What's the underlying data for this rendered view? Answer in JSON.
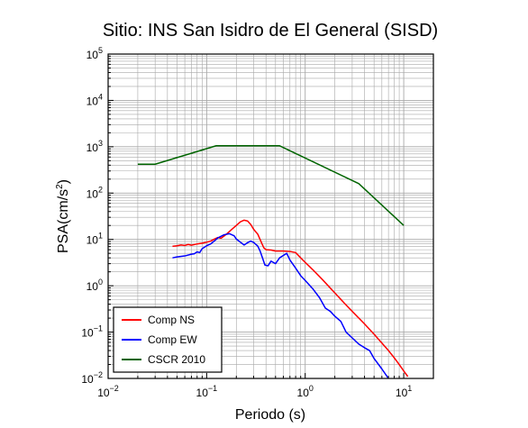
{
  "chart_data": {
    "type": "line",
    "title": "Sitio: INS San Isidro de El General (SISD)",
    "xlabel": "Periodo (s)",
    "ylabel": "PSA(cm/s2)",
    "ylabel_parts": {
      "main": "PSA(cm/s",
      "sup": "2",
      "close": ")"
    },
    "x_scale": "log",
    "y_scale": "log",
    "xlim": [
      0.01,
      20
    ],
    "ylim": [
      0.01,
      100000
    ],
    "grid": true,
    "legend_position": "bottom-left",
    "x_ticks": [
      {
        "base": "10",
        "exp": "−2",
        "value": 0.01
      },
      {
        "base": "10",
        "exp": "−1",
        "value": 0.1
      },
      {
        "base": "10",
        "exp": "0",
        "value": 1
      },
      {
        "base": "10",
        "exp": "1",
        "value": 10
      }
    ],
    "y_ticks": [
      {
        "base": "10",
        "exp": "−2",
        "value": 0.01
      },
      {
        "base": "10",
        "exp": "−1",
        "value": 0.1
      },
      {
        "base": "10",
        "exp": "0",
        "value": 1
      },
      {
        "base": "10",
        "exp": "1",
        "value": 10
      },
      {
        "base": "10",
        "exp": "2",
        "value": 100
      },
      {
        "base": "10",
        "exp": "3",
        "value": 1000
      },
      {
        "base": "10",
        "exp": "4",
        "value": 10000
      },
      {
        "base": "10",
        "exp": "5",
        "value": 100000
      }
    ],
    "series": [
      {
        "name": "Comp NS",
        "color": "#ff0000",
        "points": [
          [
            0.045,
            7.1
          ],
          [
            0.05,
            7.3
          ],
          [
            0.055,
            7.6
          ],
          [
            0.06,
            7.4
          ],
          [
            0.065,
            7.8
          ],
          [
            0.07,
            7.5
          ],
          [
            0.08,
            8.0
          ],
          [
            0.09,
            8.3
          ],
          [
            0.1,
            8.7
          ],
          [
            0.11,
            9.2
          ],
          [
            0.12,
            10.2
          ],
          [
            0.13,
            11.0
          ],
          [
            0.14,
            10.6
          ],
          [
            0.15,
            11.8
          ],
          [
            0.16,
            13.2
          ],
          [
            0.18,
            16.5
          ],
          [
            0.2,
            20.0
          ],
          [
            0.22,
            24.0
          ],
          [
            0.24,
            26.0
          ],
          [
            0.26,
            25.0
          ],
          [
            0.28,
            21.0
          ],
          [
            0.3,
            16.5
          ],
          [
            0.33,
            13.0
          ],
          [
            0.36,
            8.5
          ],
          [
            0.38,
            6.6
          ],
          [
            0.4,
            6.0
          ],
          [
            0.45,
            5.9
          ],
          [
            0.5,
            5.6
          ],
          [
            0.6,
            5.6
          ],
          [
            0.7,
            5.5
          ],
          [
            0.8,
            5.2
          ],
          [
            0.9,
            4.0
          ],
          [
            1.0,
            3.2
          ],
          [
            1.2,
            2.2
          ],
          [
            1.5,
            1.35
          ],
          [
            2.0,
            0.7
          ],
          [
            2.5,
            0.42
          ],
          [
            3.0,
            0.28
          ],
          [
            4.0,
            0.15
          ],
          [
            5.0,
            0.09
          ],
          [
            6.0,
            0.058
          ],
          [
            7.0,
            0.04
          ],
          [
            8.0,
            0.028
          ],
          [
            9.0,
            0.02
          ],
          [
            10.0,
            0.0145
          ],
          [
            11.0,
            0.011
          ]
        ]
      },
      {
        "name": "Comp EW",
        "color": "#0000ff",
        "points": [
          [
            0.045,
            4.0
          ],
          [
            0.05,
            4.2
          ],
          [
            0.06,
            4.4
          ],
          [
            0.07,
            4.8
          ],
          [
            0.075,
            4.9
          ],
          [
            0.08,
            5.4
          ],
          [
            0.085,
            5.2
          ],
          [
            0.09,
            6.3
          ],
          [
            0.1,
            7.3
          ],
          [
            0.11,
            8.0
          ],
          [
            0.12,
            9.3
          ],
          [
            0.13,
            10.8
          ],
          [
            0.15,
            12.6
          ],
          [
            0.17,
            13.3
          ],
          [
            0.19,
            12.0
          ],
          [
            0.2,
            10.2
          ],
          [
            0.22,
            8.7
          ],
          [
            0.24,
            7.6
          ],
          [
            0.26,
            8.5
          ],
          [
            0.28,
            9.2
          ],
          [
            0.3,
            8.6
          ],
          [
            0.33,
            7.2
          ],
          [
            0.35,
            5.5
          ],
          [
            0.37,
            3.9
          ],
          [
            0.39,
            2.8
          ],
          [
            0.42,
            2.7
          ],
          [
            0.45,
            3.4
          ],
          [
            0.5,
            3.0
          ],
          [
            0.55,
            4.0
          ],
          [
            0.6,
            4.5
          ],
          [
            0.65,
            5.0
          ],
          [
            0.7,
            3.6
          ],
          [
            0.8,
            2.4
          ],
          [
            0.9,
            1.65
          ],
          [
            1.0,
            1.3
          ],
          [
            1.2,
            0.85
          ],
          [
            1.4,
            0.55
          ],
          [
            1.6,
            0.33
          ],
          [
            1.8,
            0.28
          ],
          [
            2.0,
            0.22
          ],
          [
            2.3,
            0.17
          ],
          [
            2.6,
            0.1
          ],
          [
            3.0,
            0.075
          ],
          [
            3.5,
            0.055
          ],
          [
            4.0,
            0.046
          ],
          [
            4.5,
            0.04
          ],
          [
            5.0,
            0.027
          ],
          [
            6.0,
            0.016
          ],
          [
            7.0,
            0.01
          ]
        ]
      },
      {
        "name": "CSCR 2010",
        "color": "#006400",
        "points": [
          [
            0.02,
            420
          ],
          [
            0.03,
            420
          ],
          [
            0.125,
            1050
          ],
          [
            0.55,
            1050
          ],
          [
            3.5,
            160
          ],
          [
            10.0,
            20
          ]
        ]
      }
    ]
  }
}
